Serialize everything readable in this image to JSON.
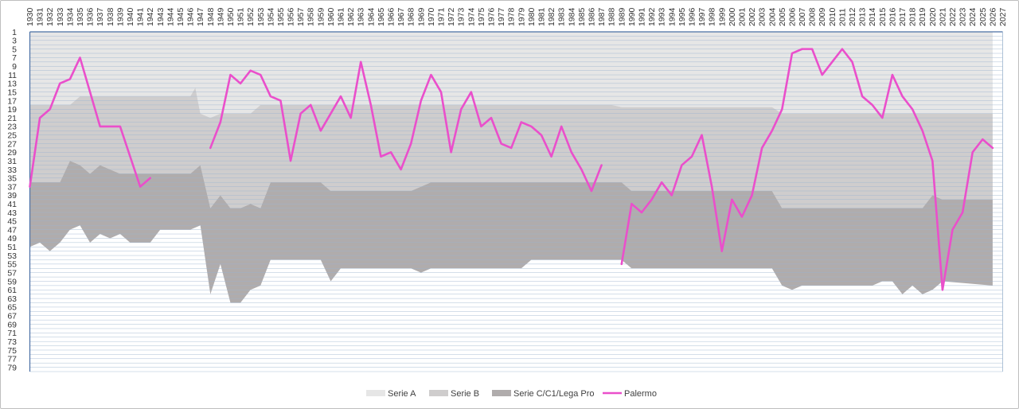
{
  "chart_data": {
    "type": "area",
    "x": [
      1930,
      1931,
      1932,
      1933,
      1934,
      1935,
      1936,
      1937,
      1938,
      1939,
      1940,
      1941,
      1942,
      1943,
      1944,
      1945,
      1946,
      1947,
      1948,
      1949,
      1950,
      1951,
      1952,
      1953,
      1954,
      1955,
      1956,
      1957,
      1958,
      1959,
      1960,
      1961,
      1962,
      1963,
      1964,
      1965,
      1966,
      1967,
      1968,
      1969,
      1970,
      1971,
      1972,
      1973,
      1974,
      1975,
      1976,
      1977,
      1978,
      1979,
      1980,
      1981,
      1982,
      1983,
      1984,
      1985,
      1986,
      1987,
      1988,
      1989,
      1990,
      1991,
      1992,
      1993,
      1994,
      1995,
      1996,
      1997,
      1998,
      1999,
      2000,
      2001,
      2002,
      2003,
      2004,
      2005,
      2006,
      2007,
      2008,
      2009,
      2010,
      2011,
      2012,
      2013,
      2014,
      2015,
      2016,
      2017,
      2018,
      2019,
      2020,
      2021,
      2022,
      2023,
      2024,
      2025,
      2026,
      2027
    ],
    "xlim": [
      1930,
      2027
    ],
    "y_ticks": [
      1,
      3,
      5,
      7,
      9,
      11,
      13,
      15,
      17,
      19,
      21,
      23,
      25,
      27,
      29,
      31,
      33,
      35,
      37,
      39,
      41,
      43,
      45,
      47,
      49,
      51,
      53,
      55,
      57,
      59,
      61,
      63,
      65,
      67,
      69,
      71,
      73,
      75,
      77,
      79
    ],
    "ylim": [
      1,
      80
    ],
    "y_inverted": true,
    "grid": true,
    "legend_position": "bottom-center",
    "series": [
      {
        "name": "Serie A",
        "kind": "band",
        "color": "#e6e6e6",
        "points": [
          [
            1930,
            1
          ],
          [
            2026,
            1
          ]
        ],
        "bottom": [
          [
            1930,
            18
          ],
          [
            1934,
            18
          ],
          [
            1935,
            16
          ],
          [
            1946,
            16
          ],
          [
            1946.5,
            14
          ],
          [
            1947,
            20
          ],
          [
            1948,
            21
          ],
          [
            1949,
            20
          ],
          [
            1952,
            20
          ],
          [
            1953,
            18
          ],
          [
            1988,
            18
          ],
          [
            1989,
            18.5
          ],
          [
            2004,
            18.5
          ],
          [
            2005,
            20
          ],
          [
            2026,
            20
          ]
        ]
      },
      {
        "name": "Serie B",
        "kind": "band",
        "color": "#cfcdcd",
        "bottom": [
          [
            1930,
            36
          ],
          [
            1933,
            36
          ],
          [
            1934,
            31
          ],
          [
            1935,
            32
          ],
          [
            1936,
            34
          ],
          [
            1937,
            32
          ],
          [
            1939,
            34
          ],
          [
            1946,
            34
          ],
          [
            1947,
            32
          ],
          [
            1948,
            42
          ],
          [
            1949,
            39
          ],
          [
            1950,
            42
          ],
          [
            1951,
            42
          ],
          [
            1952,
            41
          ],
          [
            1953,
            42
          ],
          [
            1954,
            36
          ],
          [
            1959,
            36
          ],
          [
            1960,
            38
          ],
          [
            1968,
            38
          ],
          [
            1970,
            36
          ],
          [
            1989,
            36
          ],
          [
            1990,
            38
          ],
          [
            2004,
            38
          ],
          [
            2005,
            42
          ],
          [
            2019,
            42
          ],
          [
            2020,
            39
          ],
          [
            2021,
            40
          ],
          [
            2026,
            40
          ]
        ]
      },
      {
        "name": "Serie C/C1/Lega Pro",
        "kind": "band",
        "color": "#b0acac",
        "bottom": [
          [
            1930,
            51
          ],
          [
            1931,
            50
          ],
          [
            1932,
            52
          ],
          [
            1933,
            50
          ],
          [
            1934,
            47
          ],
          [
            1935,
            46
          ],
          [
            1936,
            50
          ],
          [
            1937,
            48
          ],
          [
            1938,
            49
          ],
          [
            1939,
            48
          ],
          [
            1940,
            50
          ],
          [
            1942,
            50
          ],
          [
            1943,
            47
          ],
          [
            1946,
            47
          ],
          [
            1947,
            46
          ],
          [
            1948,
            62
          ],
          [
            1949,
            55
          ],
          [
            1950,
            64
          ],
          [
            1951,
            64
          ],
          [
            1952,
            61
          ],
          [
            1953,
            60
          ],
          [
            1954,
            54
          ],
          [
            1959,
            54
          ],
          [
            1960,
            59
          ],
          [
            1961,
            56
          ],
          [
            1968,
            56
          ],
          [
            1969,
            57
          ],
          [
            1970,
            56
          ],
          [
            1979,
            56
          ],
          [
            1980,
            54
          ],
          [
            1989,
            54
          ],
          [
            1990,
            56
          ],
          [
            2004,
            56
          ],
          [
            2005,
            60
          ],
          [
            2006,
            61
          ],
          [
            2007,
            60
          ],
          [
            2014,
            60
          ],
          [
            2015,
            59
          ],
          [
            2016,
            59
          ],
          [
            2017,
            62
          ],
          [
            2018,
            60
          ],
          [
            2019,
            62
          ],
          [
            2020,
            61
          ],
          [
            2021,
            59
          ],
          [
            2026,
            60
          ]
        ]
      },
      {
        "name": "Palermo",
        "kind": "line",
        "color": "#ea4fcb",
        "segments": [
          [
            [
              1930,
              37
            ],
            [
              1931,
              21
            ],
            [
              1932,
              19
            ],
            [
              1933,
              13
            ],
            [
              1934,
              12
            ],
            [
              1935,
              7
            ],
            [
              1936,
              15
            ],
            [
              1937,
              23
            ],
            [
              1938,
              23
            ],
            [
              1939,
              23
            ],
            [
              1940,
              30
            ],
            [
              1941,
              37
            ],
            [
              1942,
              35
            ]
          ],
          [
            [
              1948,
              28
            ],
            [
              1949,
              22
            ],
            [
              1950,
              11
            ],
            [
              1951,
              13
            ],
            [
              1952,
              10
            ],
            [
              1953,
              11
            ],
            [
              1954,
              16
            ],
            [
              1955,
              17
            ],
            [
              1956,
              31
            ],
            [
              1957,
              20
            ],
            [
              1958,
              18
            ],
            [
              1959,
              24
            ],
            [
              1960,
              20
            ],
            [
              1961,
              16
            ],
            [
              1962,
              21
            ],
            [
              1963,
              8
            ],
            [
              1964,
              18
            ],
            [
              1965,
              30
            ],
            [
              1966,
              29
            ],
            [
              1967,
              33
            ],
            [
              1968,
              27
            ],
            [
              1969,
              17
            ],
            [
              1970,
              11
            ],
            [
              1971,
              15
            ],
            [
              1972,
              29
            ],
            [
              1973,
              19
            ],
            [
              1974,
              15
            ],
            [
              1975,
              23
            ],
            [
              1976,
              21
            ],
            [
              1977,
              27
            ],
            [
              1978,
              28
            ],
            [
              1979,
              22
            ],
            [
              1980,
              23
            ],
            [
              1981,
              25
            ],
            [
              1982,
              30
            ],
            [
              1983,
              23
            ],
            [
              1984,
              29
            ],
            [
              1985,
              33
            ],
            [
              1986,
              38
            ],
            [
              1987,
              32
            ]
          ],
          [
            [
              1989,
              55
            ],
            [
              1990,
              41
            ],
            [
              1991,
              43
            ],
            [
              1992,
              40
            ],
            [
              1993,
              36
            ],
            [
              1994,
              39
            ],
            [
              1995,
              32
            ],
            [
              1996,
              30
            ],
            [
              1997,
              25
            ],
            [
              1998,
              37
            ],
            [
              1999,
              52
            ],
            [
              2000,
              40
            ],
            [
              2001,
              44
            ],
            [
              2002,
              39
            ],
            [
              2003,
              28
            ],
            [
              2004,
              24
            ],
            [
              2005,
              19
            ],
            [
              2006,
              6
            ],
            [
              2007,
              5
            ],
            [
              2008,
              5
            ],
            [
              2009,
              11
            ],
            [
              2010,
              8
            ],
            [
              2011,
              5
            ],
            [
              2012,
              8
            ],
            [
              2013,
              16
            ],
            [
              2014,
              18
            ],
            [
              2015,
              21
            ],
            [
              2016,
              11
            ],
            [
              2017,
              16
            ],
            [
              2018,
              19
            ],
            [
              2019,
              24
            ],
            [
              2020,
              31
            ],
            [
              2021,
              61
            ],
            [
              2022,
              47
            ],
            [
              2023,
              43
            ],
            [
              2024,
              29
            ],
            [
              2025,
              26
            ],
            [
              2026,
              28
            ]
          ]
        ]
      }
    ]
  }
}
